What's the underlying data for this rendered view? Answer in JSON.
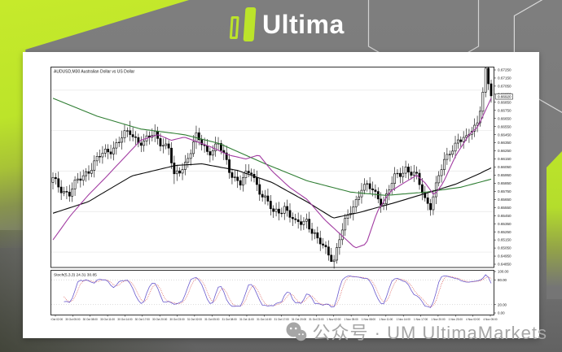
{
  "header": {
    "logo_text": "Ultima"
  },
  "watermark": {
    "text": "公众号 · UM UltimaMarkets",
    "icon": "wechat-icon"
  },
  "colors": {
    "accent_green": "#BCE42A",
    "background_gray": "#7B7B7B",
    "ma_fast": "#A23CA2",
    "ma_mid": "#0A0A0A",
    "ma_slow": "#2E7D32",
    "stoch_k": "#6A5ACD",
    "stoch_d": "#D9534F",
    "grid": "#E7E7E7"
  },
  "chart_data": {
    "type": "candlestick",
    "title": "AUDUSD,M30  Australian Dollar vs US Dollar",
    "symbol": "AUDUSD",
    "timeframe": "M30",
    "y_axis": {
      "max": 0.6725,
      "min": 0.6485,
      "step": 0.001,
      "labels": [
        "0.67250",
        "0.67150",
        "0.67050",
        "0.66950",
        "0.66850",
        "0.66750",
        "0.66650",
        "0.66550",
        "0.66450",
        "0.66350",
        "0.66250",
        "0.66150",
        "0.66050",
        "0.65950",
        "0.65850",
        "0.65750",
        "0.65650",
        "0.65550",
        "0.65450",
        "0.65350",
        "0.65250",
        "0.65150",
        "0.65050",
        "0.64950",
        "0.64850"
      ],
      "current_price": 0.6692
    },
    "gridline_prices": [
      0.67,
      0.665,
      0.66,
      0.655,
      0.65
    ],
    "x_labels": [
      "30 Oct 02:00",
      "30 Oct 05:00",
      "30 Oct 08:00",
      "30 Oct 11:00",
      "30 Oct 14:00",
      "30 Oct 17:00",
      "30 Oct 20:00",
      "30 Oct 23:00",
      "31 Oct 02:00",
      "31 Oct 05:00",
      "31 Oct 08:00",
      "31 Oct 11:00",
      "31 Oct 14:00",
      "31 Oct 17:00",
      "31 Oct 20:00",
      "31 Oct 23:00",
      "1 Nov 02:00",
      "1 Nov 05:00",
      "1 Nov 08:00",
      "1 Nov 11:00",
      "1 Nov 14:00",
      "1 Nov 17:00",
      "1 Nov 20:00",
      "1 Nov 23:00",
      "4 Nov 02:00",
      "4 Nov 05:00"
    ],
    "candles": {
      "count": 160,
      "close_waypoints": [
        [
          0,
          0.6588
        ],
        [
          6,
          0.6572
        ],
        [
          12,
          0.66
        ],
        [
          20,
          0.6626
        ],
        [
          28,
          0.6648
        ],
        [
          33,
          0.6634
        ],
        [
          37,
          0.6646
        ],
        [
          42,
          0.6628
        ],
        [
          44,
          0.659
        ],
        [
          48,
          0.6612
        ],
        [
          52,
          0.664
        ],
        [
          56,
          0.6626
        ],
        [
          60,
          0.6632
        ],
        [
          64,
          0.6602
        ],
        [
          68,
          0.6586
        ],
        [
          72,
          0.6598
        ],
        [
          76,
          0.6572
        ],
        [
          80,
          0.6546
        ],
        [
          84,
          0.6558
        ],
        [
          88,
          0.6532
        ],
        [
          92,
          0.6542
        ],
        [
          96,
          0.6512
        ],
        [
          100,
          0.65
        ],
        [
          102,
          0.6492
        ],
        [
          104,
          0.6516
        ],
        [
          108,
          0.6552
        ],
        [
          112,
          0.658
        ],
        [
          116,
          0.6576
        ],
        [
          120,
          0.6562
        ],
        [
          124,
          0.659
        ],
        [
          128,
          0.6606
        ],
        [
          132,
          0.659
        ],
        [
          135,
          0.6566
        ],
        [
          137,
          0.656
        ],
        [
          140,
          0.6592
        ],
        [
          144,
          0.6626
        ],
        [
          147,
          0.664
        ],
        [
          150,
          0.6636
        ],
        [
          152,
          0.6652
        ],
        [
          154,
          0.6662
        ],
        [
          156,
          0.67
        ],
        [
          157,
          0.6722
        ],
        [
          158,
          0.6704
        ],
        [
          159,
          0.6692
        ]
      ],
      "spikes": [
        {
          "i": 44,
          "low": 0.6584
        },
        {
          "i": 28,
          "high": 0.6662
        },
        {
          "i": 101,
          "low": 0.6488
        },
        {
          "i": 157,
          "high": 0.6728
        }
      ]
    },
    "moving_averages": [
      {
        "name": "MA slow",
        "color": "#2E7D32",
        "waypoints": [
          [
            0,
            0.669
          ],
          [
            0.1,
            0.6668
          ],
          [
            0.2,
            0.6652
          ],
          [
            0.3,
            0.6645
          ],
          [
            0.38,
            0.6634
          ],
          [
            0.48,
            0.661
          ],
          [
            0.58,
            0.6588
          ],
          [
            0.68,
            0.6574
          ],
          [
            0.76,
            0.657
          ],
          [
            0.85,
            0.6574
          ],
          [
            0.93,
            0.658
          ],
          [
            1,
            0.659
          ]
        ]
      },
      {
        "name": "MA mid",
        "color": "#0A0A0A",
        "waypoints": [
          [
            0,
            0.6548
          ],
          [
            0.08,
            0.6562
          ],
          [
            0.18,
            0.6594
          ],
          [
            0.28,
            0.6607
          ],
          [
            0.34,
            0.6609
          ],
          [
            0.42,
            0.6601
          ],
          [
            0.5,
            0.6586
          ],
          [
            0.58,
            0.6562
          ],
          [
            0.64,
            0.6542
          ],
          [
            0.7,
            0.6549
          ],
          [
            0.78,
            0.6561
          ],
          [
            0.86,
            0.6574
          ],
          [
            0.92,
            0.6584
          ],
          [
            0.97,
            0.6596
          ],
          [
            1,
            0.6604
          ]
        ]
      },
      {
        "name": "MA fast",
        "color": "#A23CA2",
        "waypoints": [
          [
            0,
            0.6515
          ],
          [
            0.04,
            0.6545
          ],
          [
            0.08,
            0.657
          ],
          [
            0.12,
            0.6592
          ],
          [
            0.16,
            0.6615
          ],
          [
            0.2,
            0.6638
          ],
          [
            0.24,
            0.6645
          ],
          [
            0.27,
            0.6638
          ],
          [
            0.3,
            0.6642
          ],
          [
            0.33,
            0.6636
          ],
          [
            0.36,
            0.663
          ],
          [
            0.4,
            0.662
          ],
          [
            0.44,
            0.6615
          ],
          [
            0.47,
            0.662
          ],
          [
            0.5,
            0.66
          ],
          [
            0.54,
            0.658
          ],
          [
            0.58,
            0.6565
          ],
          [
            0.62,
            0.654
          ],
          [
            0.66,
            0.652
          ],
          [
            0.69,
            0.6505
          ],
          [
            0.715,
            0.651
          ],
          [
            0.74,
            0.655
          ],
          [
            0.77,
            0.6575
          ],
          [
            0.8,
            0.6585
          ],
          [
            0.83,
            0.6595
          ],
          [
            0.85,
            0.6585
          ],
          [
            0.87,
            0.657
          ],
          [
            0.89,
            0.6585
          ],
          [
            0.92,
            0.662
          ],
          [
            0.95,
            0.6645
          ],
          [
            0.97,
            0.6655
          ],
          [
            1,
            0.669
          ]
        ]
      }
    ],
    "indicator": {
      "name": "Stoch",
      "label": "Stoch(5,3,3) 24.31 30.85",
      "levels": [
        80,
        20
      ],
      "scale_labels": [
        "100.00",
        "80.00",
        "20.00",
        "0.00"
      ],
      "scale_values": [
        100,
        80,
        20,
        0
      ]
    }
  }
}
